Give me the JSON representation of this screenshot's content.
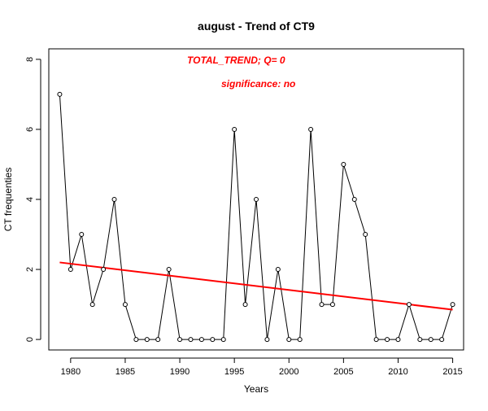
{
  "chart_data": {
    "type": "line",
    "title": "august  -  Trend of CT9",
    "xlabel": "Years",
    "ylabel": "CT frequenties",
    "xlim": [
      1978,
      2016
    ],
    "ylim": [
      -0.3,
      8.3
    ],
    "x_ticks": [
      1980,
      1985,
      1990,
      1995,
      2000,
      2005,
      2010,
      2015
    ],
    "y_ticks": [
      0,
      2,
      4,
      6,
      8
    ],
    "grid": false,
    "annotations": [
      {
        "text": "TOTAL_TREND;  Q=   0",
        "color": "#ff0000"
      },
      {
        "text": "significance:   no",
        "color": "#ff0000"
      }
    ],
    "series": [
      {
        "color": "#000000",
        "x": [
          1979,
          1980,
          1981,
          1982,
          1983,
          1984,
          1985,
          1986,
          1987,
          1988,
          1989,
          1990,
          1991,
          1992,
          1993,
          1994,
          1995,
          1996,
          1997,
          1998,
          1999,
          2000,
          2001,
          2002,
          2003,
          2004,
          2005,
          2006,
          2007,
          2008,
          2009,
          2010,
          2011,
          2012,
          2013,
          2014,
          2015
        ],
        "values": [
          7,
          2,
          3,
          1,
          2,
          4,
          1,
          0,
          0,
          0,
          2,
          0,
          0,
          0,
          0,
          0,
          6,
          1,
          4,
          0,
          2,
          0,
          0,
          6,
          1,
          1,
          5,
          4,
          3,
          0,
          0,
          0,
          1,
          0,
          0,
          0,
          1
        ]
      },
      {
        "color": "#ff0000",
        "x": [
          1979,
          2015
        ],
        "values": [
          2.2,
          0.85
        ]
      }
    ]
  }
}
